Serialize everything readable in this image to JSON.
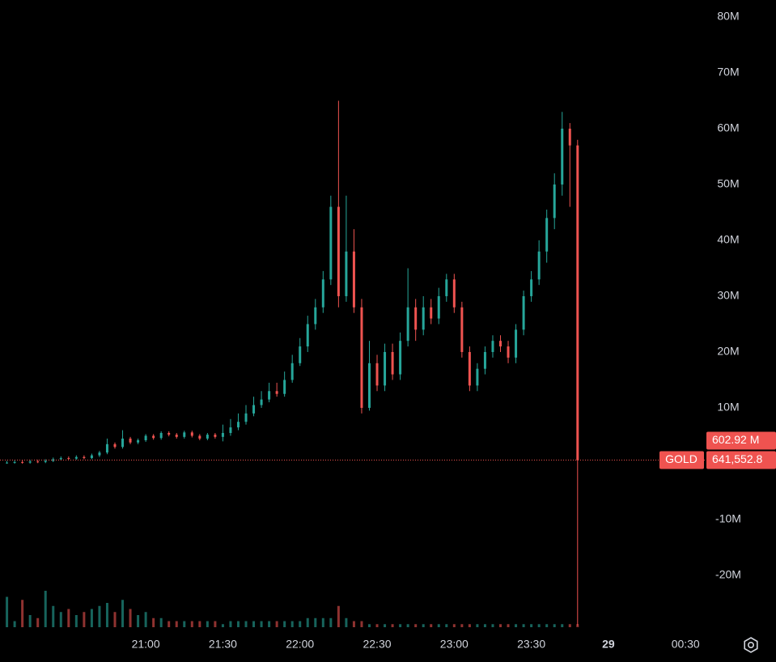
{
  "chart_data": {
    "type": "candlestick",
    "symbol": "GOLD",
    "badge": "602.92 M",
    "price_line": {
      "value": 0.6415528,
      "label": "641,552.8"
    },
    "up_color": "#26a69a",
    "down_color": "#ef5350",
    "xlim": [
      1203.3,
      1477.8
    ],
    "xticks": [
      {
        "value": 1260,
        "label": "21:00"
      },
      {
        "value": 1290,
        "label": "21:30"
      },
      {
        "value": 1320,
        "label": "22:00"
      },
      {
        "value": 1350,
        "label": "22:30"
      },
      {
        "value": 1380,
        "label": "23:00"
      },
      {
        "value": 1410,
        "label": "23:30"
      },
      {
        "value": 1440,
        "label": "29"
      },
      {
        "value": 1470,
        "label": "00:30"
      }
    ],
    "ylim": [
      -29.28,
      83.04
    ],
    "yticks": [
      {
        "value": 80,
        "label": "80M"
      },
      {
        "value": 70,
        "label": "70M"
      },
      {
        "value": 60,
        "label": "60M"
      },
      {
        "value": 50,
        "label": "50M"
      },
      {
        "value": 40,
        "label": "40M"
      },
      {
        "value": 30,
        "label": "30M"
      },
      {
        "value": 20,
        "label": "20M"
      },
      {
        "value": 10,
        "label": "10M"
      },
      {
        "value": -10,
        "label": "-10M"
      },
      {
        "value": -20,
        "label": "-20M"
      }
    ],
    "x": [
      1206,
      1209,
      1212,
      1215,
      1218,
      1221,
      1224,
      1227,
      1230,
      1233,
      1236,
      1239,
      1242,
      1245,
      1248,
      1251,
      1254,
      1257,
      1260,
      1263,
      1266,
      1269,
      1272,
      1275,
      1278,
      1281,
      1284,
      1287,
      1290,
      1293,
      1296,
      1299,
      1302,
      1305,
      1308,
      1311,
      1314,
      1317,
      1320,
      1323,
      1326,
      1329,
      1332,
      1335,
      1338,
      1341,
      1344,
      1347,
      1350,
      1353,
      1356,
      1359,
      1362,
      1365,
      1368,
      1371,
      1374,
      1377,
      1380,
      1383,
      1386,
      1389,
      1392,
      1395,
      1398,
      1401,
      1404,
      1407,
      1410,
      1413,
      1416,
      1419,
      1422,
      1425,
      1428
    ],
    "open": [
      0.1,
      0.2,
      0.3,
      0.2,
      0.4,
      0.3,
      0.5,
      0.8,
      1.0,
      0.9,
      1.2,
      1.0,
      1.5,
      2.0,
      3.5,
      3.0,
      4.5,
      3.8,
      4.2,
      5.0,
      4.6,
      5.5,
      5.2,
      4.8,
      5.6,
      5.0,
      4.5,
      5.2,
      4.8,
      5.5,
      6.5,
      7.5,
      9.0,
      10.5,
      11.5,
      13.0,
      12.5,
      15.0,
      18.0,
      21.0,
      25.0,
      28.0,
      33.0,
      46.0,
      30.0,
      38.0,
      28.0,
      10.0,
      18.0,
      14.0,
      20.0,
      16.0,
      22.0,
      28.0,
      24.0,
      28.0,
      26.0,
      30.0,
      33.0,
      28.0,
      20.0,
      14.0,
      17.0,
      20.0,
      22.0,
      21.0,
      19.0,
      24.0,
      30.0,
      33.0,
      38.0,
      44.0,
      50.0,
      60.0,
      57.0
    ],
    "high": [
      0.5,
      0.6,
      0.6,
      0.7,
      0.7,
      0.8,
      1.1,
      1.3,
      1.3,
      1.5,
      1.5,
      1.8,
      2.3,
      4.5,
      3.8,
      6.0,
      4.8,
      4.5,
      5.3,
      5.3,
      5.8,
      5.8,
      5.5,
      5.9,
      5.9,
      5.3,
      5.5,
      5.5,
      7.0,
      8.0,
      9.0,
      10.5,
      12.0,
      13.0,
      14.5,
      14.5,
      16.5,
      19.5,
      22.5,
      26.5,
      29.5,
      34.5,
      48,
      65,
      48,
      42,
      29.5,
      22,
      19.5,
      21.5,
      21.5,
      23.5,
      35,
      29.5,
      30,
      29.5,
      31.5,
      34,
      34,
      29,
      21,
      18,
      21,
      23,
      23,
      22,
      25,
      31,
      34.5,
      40,
      45.5,
      52,
      63,
      61,
      58
    ],
    "low": [
      0.0,
      0.0,
      0.0,
      0.0,
      0.1,
      0.1,
      0.3,
      0.6,
      0.7,
      0.7,
      0.8,
      0.8,
      1.2,
      1.7,
      2.7,
      2.7,
      3.5,
      3.5,
      3.9,
      4.3,
      4.3,
      4.9,
      4.5,
      4.5,
      4.7,
      4.2,
      4.2,
      4.5,
      4.0,
      5.0,
      6.0,
      7.0,
      8.5,
      10.0,
      11.0,
      12.0,
      12.0,
      14.5,
      17.5,
      20,
      24,
      27,
      32,
      28,
      29,
      27,
      9,
      9.5,
      13,
      13,
      15,
      15,
      21,
      22,
      23,
      25,
      25,
      29,
      27,
      19,
      13,
      13,
      16,
      19,
      20,
      18,
      18,
      23,
      29,
      32,
      36,
      42,
      48,
      46,
      -29
    ],
    "close": [
      0.2,
      0.3,
      0.2,
      0.4,
      0.3,
      0.5,
      0.8,
      1.0,
      0.9,
      1.2,
      1.0,
      1.5,
      2.0,
      3.5,
      3.0,
      4.5,
      3.8,
      4.2,
      5.0,
      4.6,
      5.5,
      5.2,
      4.8,
      5.6,
      5.0,
      4.5,
      5.2,
      4.8,
      5.5,
      6.5,
      7.5,
      9.0,
      10.5,
      11.5,
      13.0,
      12.5,
      15.0,
      18.0,
      21.0,
      25.0,
      28.0,
      33.0,
      46.0,
      30.0,
      38.0,
      28.0,
      10.0,
      18.0,
      14.0,
      20.0,
      16.0,
      22.0,
      28.0,
      24.0,
      28.0,
      26.0,
      30.0,
      33.0,
      28.0,
      20.0,
      14.0,
      17.0,
      20.0,
      22.0,
      21.0,
      19.0,
      24.0,
      30.0,
      33.0,
      38.0,
      44.0,
      50.0,
      60.0,
      57.0,
      0.64
    ],
    "volume": [
      10,
      2,
      9,
      4,
      3,
      12,
      7,
      5,
      6,
      4,
      5,
      6,
      7,
      8,
      5,
      9,
      6,
      4,
      5,
      3,
      3,
      2,
      2,
      2,
      2,
      2,
      2,
      2,
      1,
      2,
      2,
      2,
      2,
      2,
      2,
      2,
      2,
      2,
      2,
      3,
      3,
      3,
      3,
      7,
      3,
      2,
      2,
      1,
      1,
      1,
      1,
      1,
      1,
      1,
      1,
      1,
      1,
      1,
      1,
      1,
      1,
      1,
      1,
      1,
      1,
      1,
      1,
      1,
      1,
      1,
      1,
      1,
      1,
      1,
      1
    ]
  }
}
